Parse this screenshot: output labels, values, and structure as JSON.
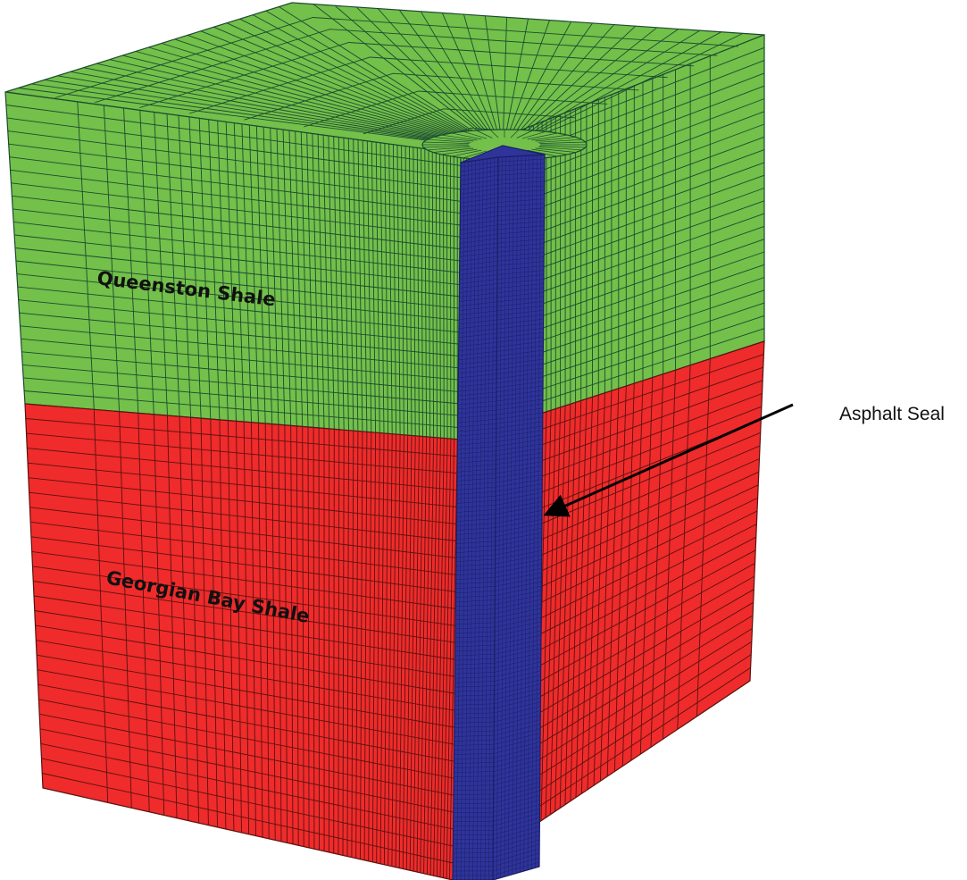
{
  "labels": {
    "upper_layer": "Queenston Shale",
    "lower_layer": "Georgian Bay Shale",
    "seal": "Asphalt Seal"
  },
  "colors": {
    "upper_layer": "#73c04a",
    "lower_layer": "#ef2b2b",
    "seal": "#2f349b",
    "mesh_line_green": "#1c4a30",
    "mesh_line_red": "#5a1210",
    "mesh_line_seal": "#1a1f66",
    "callout_line": "#000000"
  }
}
